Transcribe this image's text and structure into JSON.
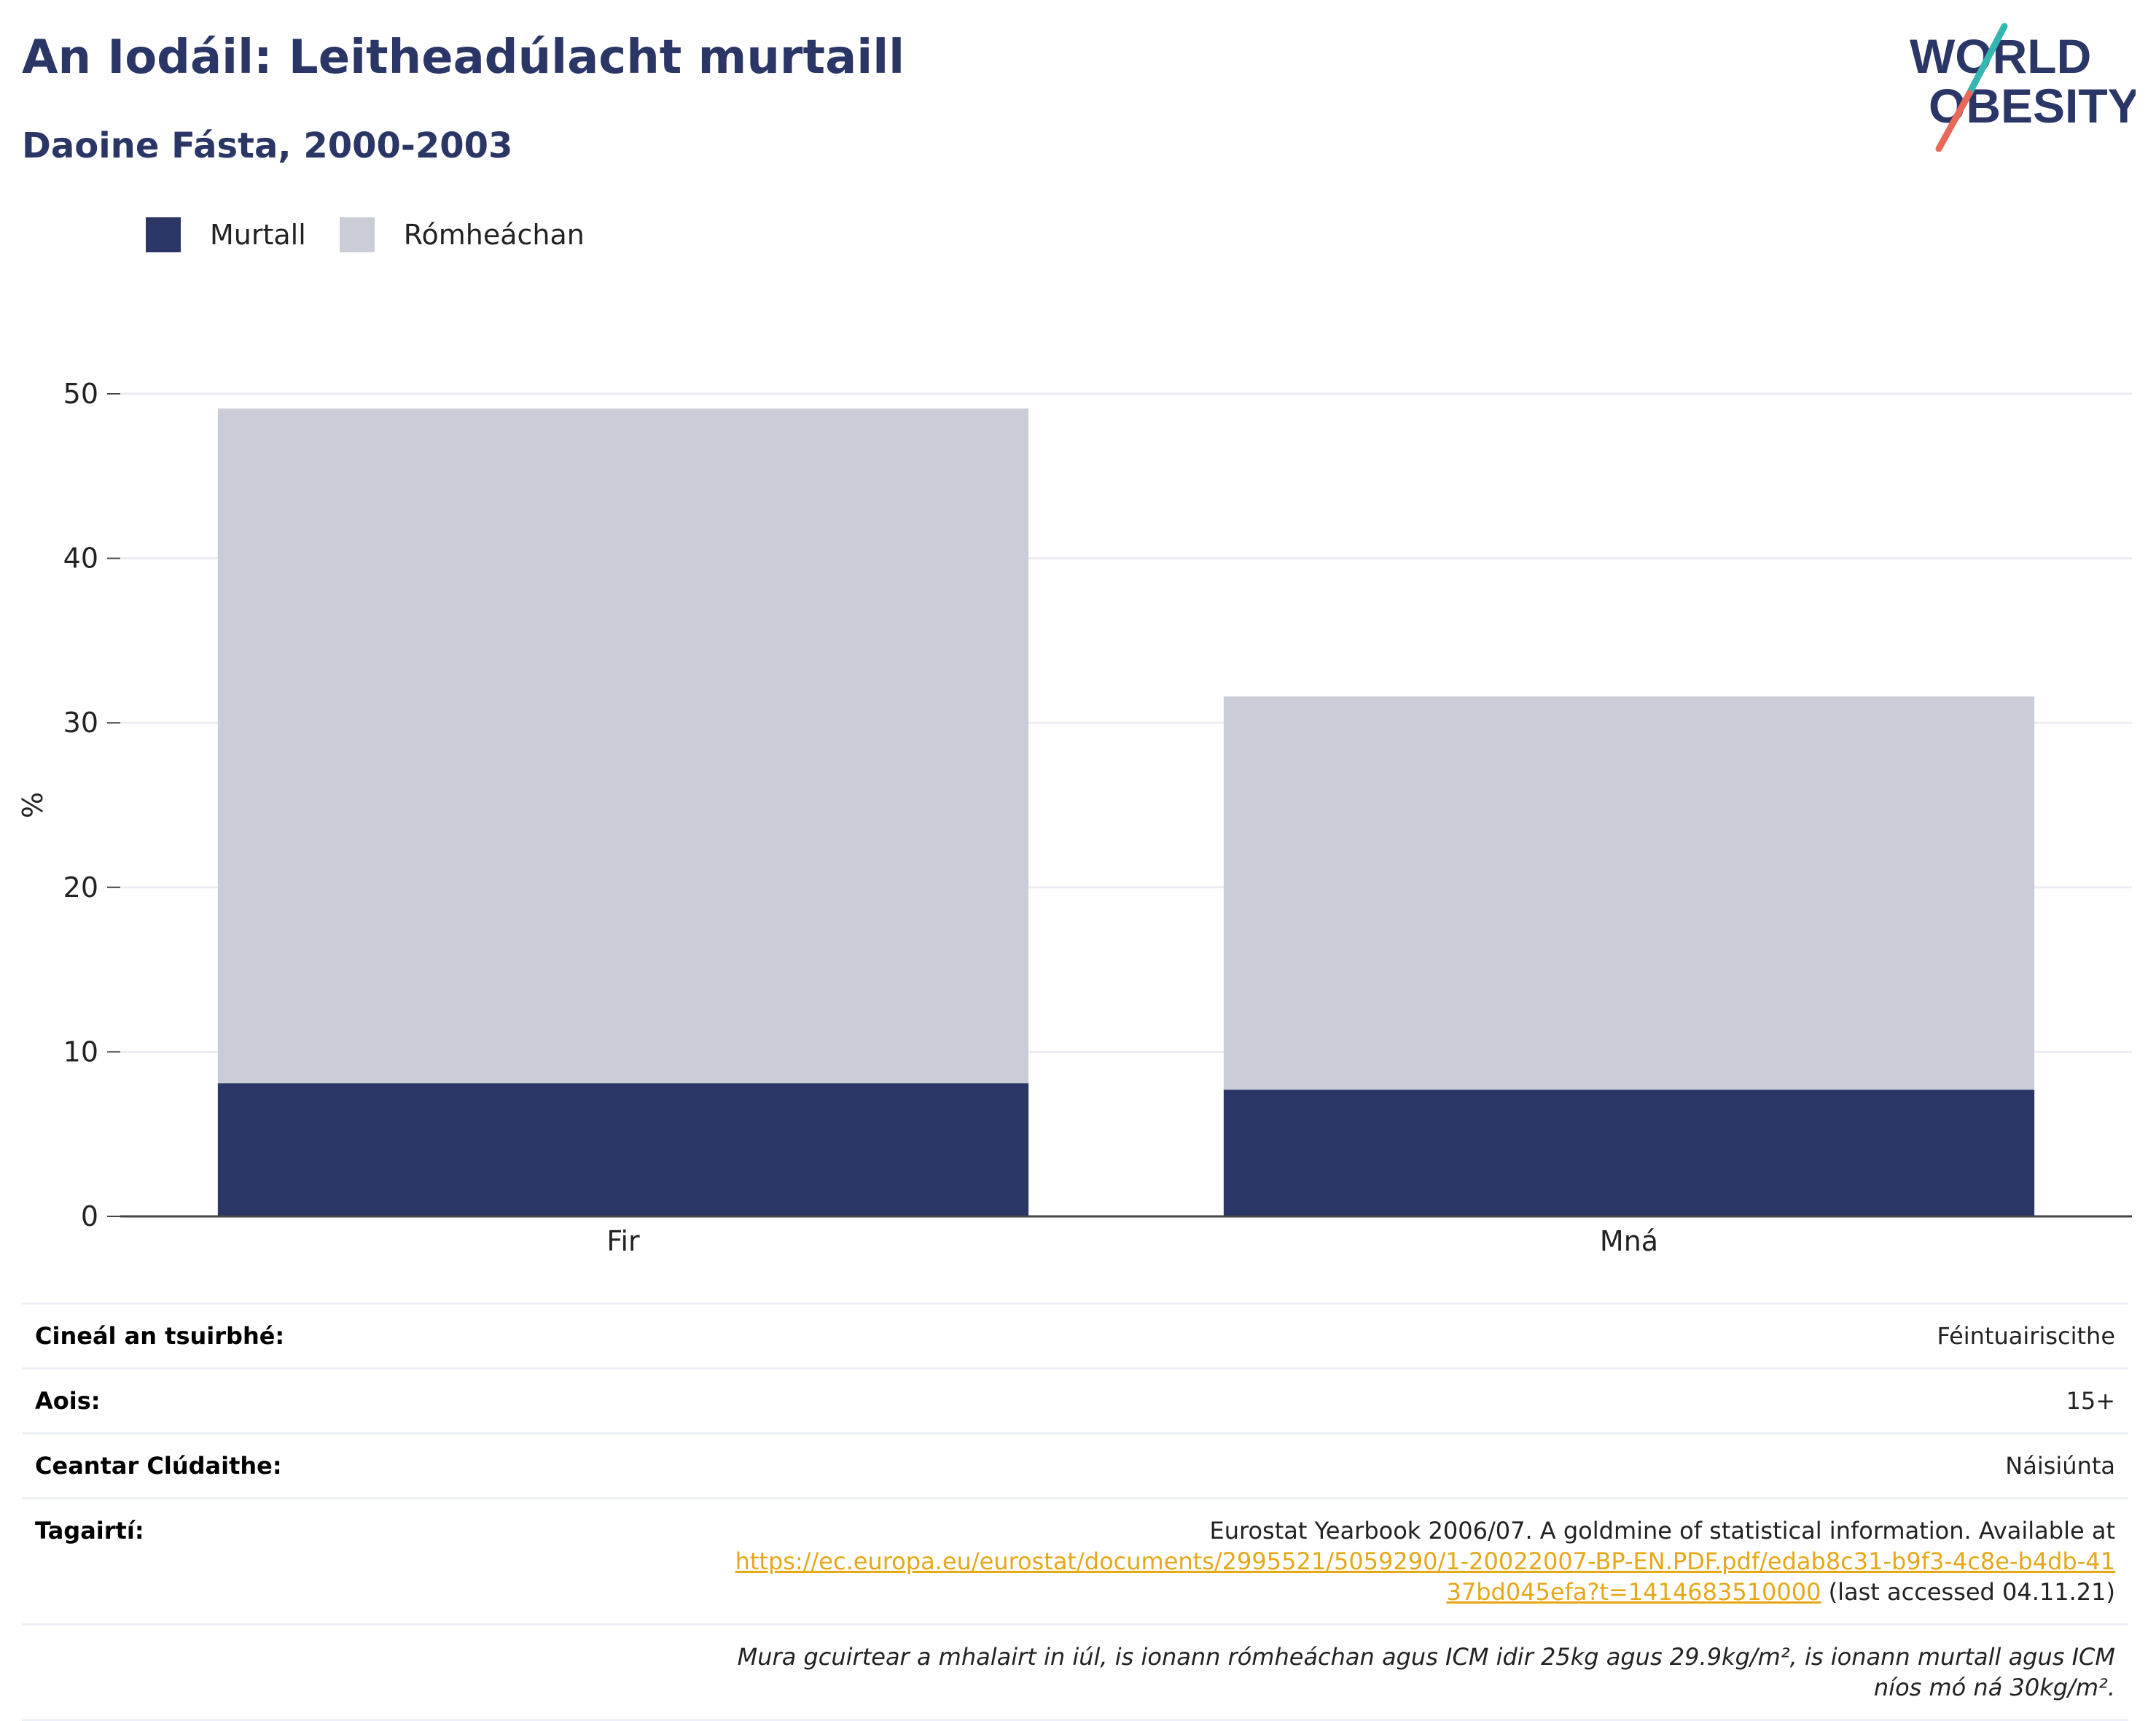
{
  "header": {
    "title": "An Iodáil: Leitheadúlacht murtaill",
    "subtitle": "Daoine Fásta, 2000-2003"
  },
  "logo": {
    "line1": "WORLD",
    "line2": "OBESITY",
    "icon": "world-obesity-logo"
  },
  "colors": {
    "obese": "#2a3666",
    "overweight": "#cacdd8",
    "title": "#2a3666",
    "link": "#e6a818"
  },
  "legend": [
    {
      "label": "Murtall",
      "color": "#2a3666"
    },
    {
      "label": "Rómheáchan",
      "color": "#cacdd8"
    }
  ],
  "chart_data": {
    "type": "bar",
    "stacked": true,
    "categories": [
      "Fir",
      "Mná"
    ],
    "series": [
      {
        "name": "Murtall",
        "values": [
          8.1,
          7.7
        ]
      },
      {
        "name": "Rómheáchan",
        "values": [
          41.0,
          23.9
        ]
      }
    ],
    "ylabel": "%",
    "ylim": [
      0,
      50
    ],
    "yticks": [
      0,
      10,
      20,
      30,
      40,
      50
    ],
    "grid": true,
    "legend_position": "top-left"
  },
  "info": {
    "survey_type_label": "Cineál an tsuirbhé:",
    "survey_type_value": "Féintuairiscithe",
    "age_label": "Aois:",
    "age_value": "15+",
    "area_label": "Ceantar Clúdaithe:",
    "area_value": "Náisiúnta",
    "references_label": "Tagairtí:",
    "reference_text": "Eurostat Yearbook 2006/07. A goldmine of statistical information. Available at",
    "reference_link": "https://ec.europa.eu/eurostat/documents/2995521/5059290/1-20022007-BP-EN.PDF.pdf/edab8c31-b9f3-4c8e-b4db-4137bd045efa?t=1414683510000",
    "reference_accessed": "(last accessed 04.11.21)",
    "note": "Mura gcuirtear a mhalairt in iúl, is ionann rómheáchan agus ICM idir 25kg agus 29.9kg/m², is ionann murtall agus ICM níos mó ná 30kg/m²."
  }
}
